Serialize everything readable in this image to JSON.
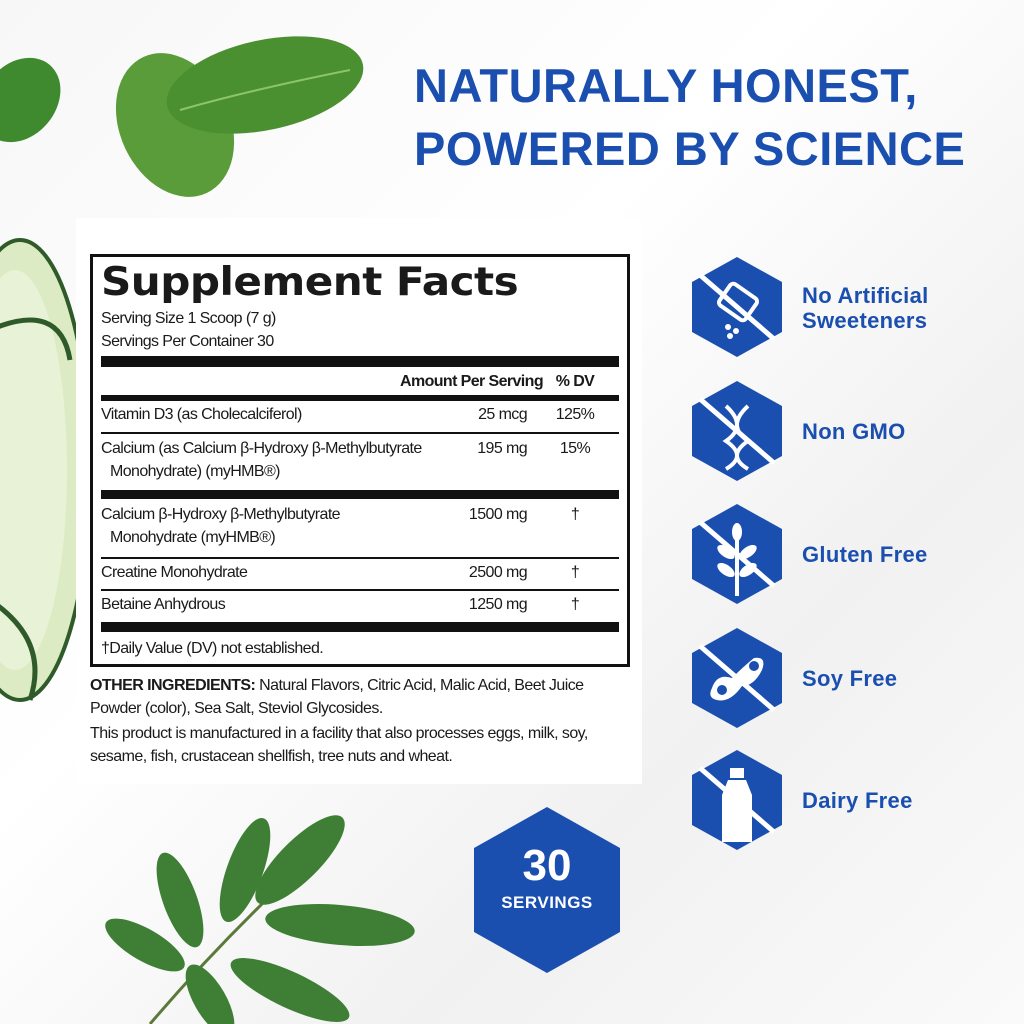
{
  "headline": [
    "NATURALLY HONEST,",
    "POWERED BY SCIENCE"
  ],
  "facts": {
    "title": "Supplement Facts",
    "serving_size": "Serving Size 1 Scoop (7 g)",
    "servings_per_container": "Servings Per Container 30",
    "col_amount": "Amount Per Serving",
    "col_dv": "% DV",
    "rows": [
      {
        "name": "Vitamin D3 (as Cholecalciferol)",
        "name2": "",
        "amount": "25 mcg",
        "dv": "125%"
      },
      {
        "name": "Calcium (as Calcium β-Hydroxy β-Methylbutyrate",
        "name2": "Monohydrate) (myHMB®)",
        "amount": "195 mg",
        "dv": "15%"
      },
      {
        "name": "Calcium β-Hydroxy β-Methylbutyrate",
        "name2": "Monohydrate (myHMB®)",
        "amount": "1500 mg",
        "dv": "†"
      },
      {
        "name": "Creatine Monohydrate",
        "name2": "",
        "amount": "2500 mg",
        "dv": "†"
      },
      {
        "name": "Betaine Anhydrous",
        "name2": "",
        "amount": "1250 mg",
        "dv": "†"
      }
    ],
    "footnote": "†Daily Value (DV) not established."
  },
  "other_ingredients": {
    "label": "OTHER INGREDIENTS:",
    "text": " Natural Flavors, Citric Acid, Malic Acid, Beet Juice Powder (color), Sea Salt, Steviol Glycosides.",
    "allergen": "This product is manufactured in a facility that also processes eggs, milk, soy, sesame, fish, crustacean shellfish, tree nuts and wheat."
  },
  "badges": [
    {
      "icon": "no-sweetener-icon",
      "label": "No Artificial",
      "label2": "Sweeteners"
    },
    {
      "icon": "no-dna-icon",
      "label": "Non GMO",
      "label2": ""
    },
    {
      "icon": "no-wheat-icon",
      "label": "Gluten Free",
      "label2": ""
    },
    {
      "icon": "no-soy-icon",
      "label": "Soy Free",
      "label2": ""
    },
    {
      "icon": "no-milk-icon",
      "label": "Dairy Free",
      "label2": ""
    }
  ],
  "servings_badge": {
    "number": "30",
    "label": "SERVINGS"
  },
  "colors": {
    "brand_blue": "#1a4fb0",
    "leaf_green": "#3d8a3a",
    "cucumber": "#cfe3b0"
  }
}
